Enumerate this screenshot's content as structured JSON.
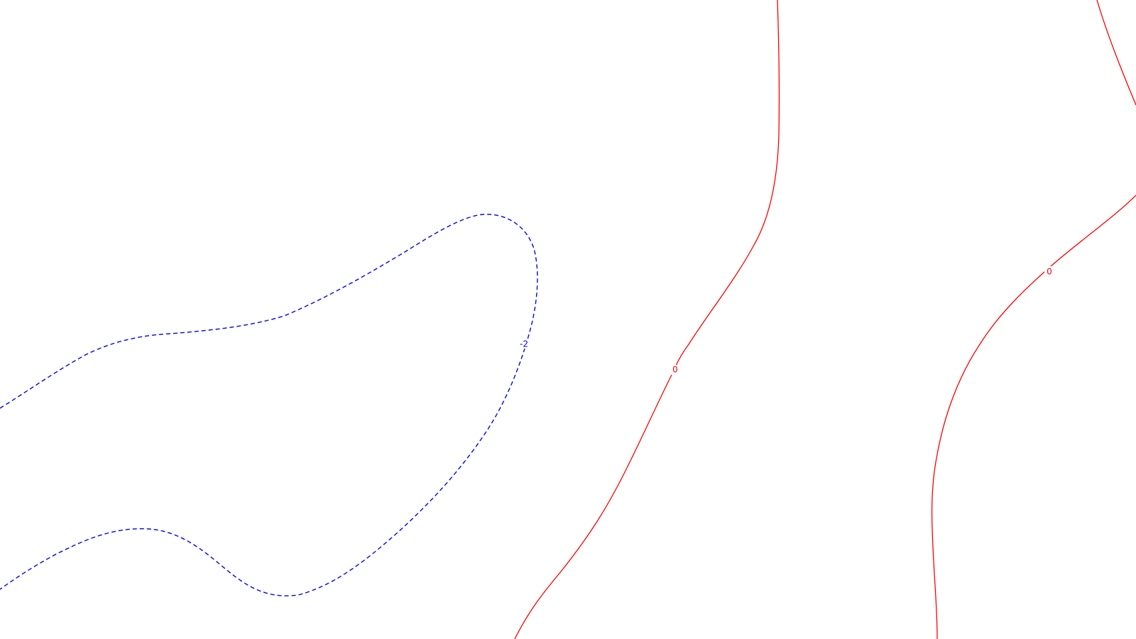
{
  "colors": {
    "background": "#ffffff",
    "positive_contour": "#ff0000",
    "negative_contour": "#0000ff"
  },
  "contours": [
    {
      "id": "contour-negative-2",
      "value": -2,
      "style": "dashed",
      "color": "#0000ff",
      "label": "-2"
    },
    {
      "id": "contour-zero-left",
      "value": 0,
      "style": "solid",
      "color": "#ff0000",
      "label": "0"
    },
    {
      "id": "contour-zero-right",
      "value": 0,
      "style": "solid",
      "color": "#ff0000",
      "label": "0"
    }
  ]
}
